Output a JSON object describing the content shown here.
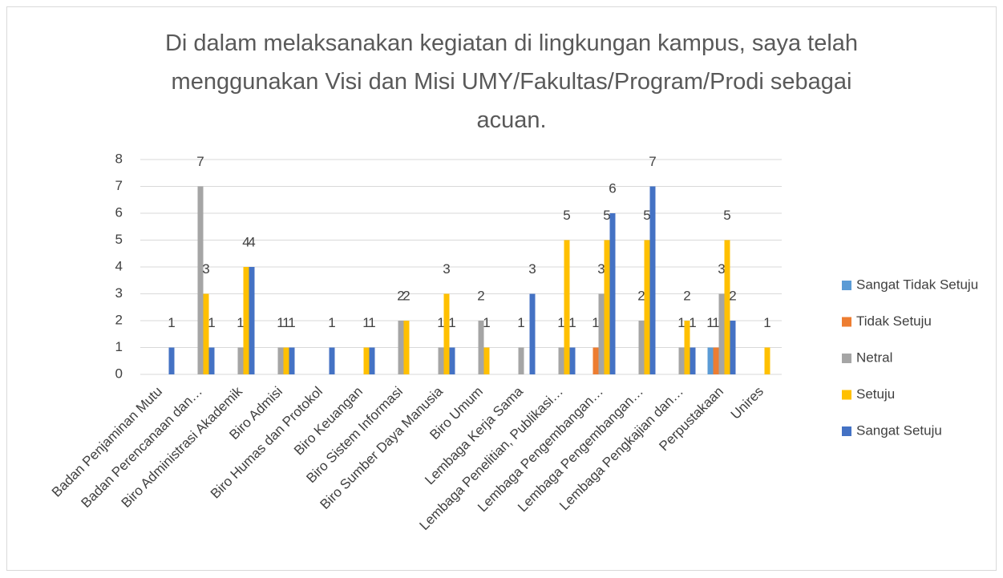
{
  "chart_data": {
    "type": "bar",
    "title": "Di dalam melaksanakan kegiatan di lingkungan kampus, saya telah menggunakan Visi dan Misi UMY/Fakultas/Program/Prodi sebagai acuan.",
    "categories": [
      "Badan Penjaminan Mutu",
      "Badan Perencanaan dan…",
      "Biro Administrasi Akademik",
      "Biro Admisi",
      "Biro Humas dan Protokol",
      "Biro Keuangan",
      "Biro Sistem Informasi",
      "Biro Sumber Daya Manusia",
      "Biro Umum",
      "Lembaga Kerja Sama",
      "Lembaga Penelitian, Publikasi…",
      "Lembaga Pengembangan…",
      "Lembaga Pengembangan…",
      "Lembaga Pengkajian dan…",
      "Perpustakaan",
      "Unires"
    ],
    "series": [
      {
        "name": "Sangat Tidak Setuju",
        "color": "#5b9bd5",
        "values": [
          null,
          null,
          null,
          null,
          null,
          null,
          null,
          null,
          null,
          null,
          null,
          null,
          null,
          null,
          1,
          null
        ]
      },
      {
        "name": "Tidak Setuju",
        "color": "#ed7d31",
        "values": [
          null,
          null,
          null,
          null,
          null,
          null,
          null,
          null,
          null,
          null,
          null,
          1,
          null,
          null,
          1,
          null
        ]
      },
      {
        "name": "Netral",
        "color": "#a5a5a5",
        "values": [
          null,
          7,
          1,
          1,
          null,
          null,
          2,
          1,
          2,
          1,
          1,
          3,
          2,
          1,
          3,
          null
        ]
      },
      {
        "name": "Setuju",
        "color": "#ffc000",
        "values": [
          null,
          3,
          4,
          1,
          null,
          1,
          2,
          3,
          1,
          null,
          5,
          5,
          5,
          2,
          5,
          1
        ]
      },
      {
        "name": "Sangat Setuju",
        "color": "#4472c4",
        "values": [
          1,
          1,
          4,
          1,
          1,
          1,
          null,
          1,
          null,
          3,
          1,
          6,
          7,
          1,
          2,
          null
        ]
      }
    ],
    "ylim": [
      0,
      8
    ],
    "yticks": [
      0,
      1,
      2,
      3,
      4,
      5,
      6,
      7,
      8
    ],
    "grid": true,
    "legend": "right"
  }
}
